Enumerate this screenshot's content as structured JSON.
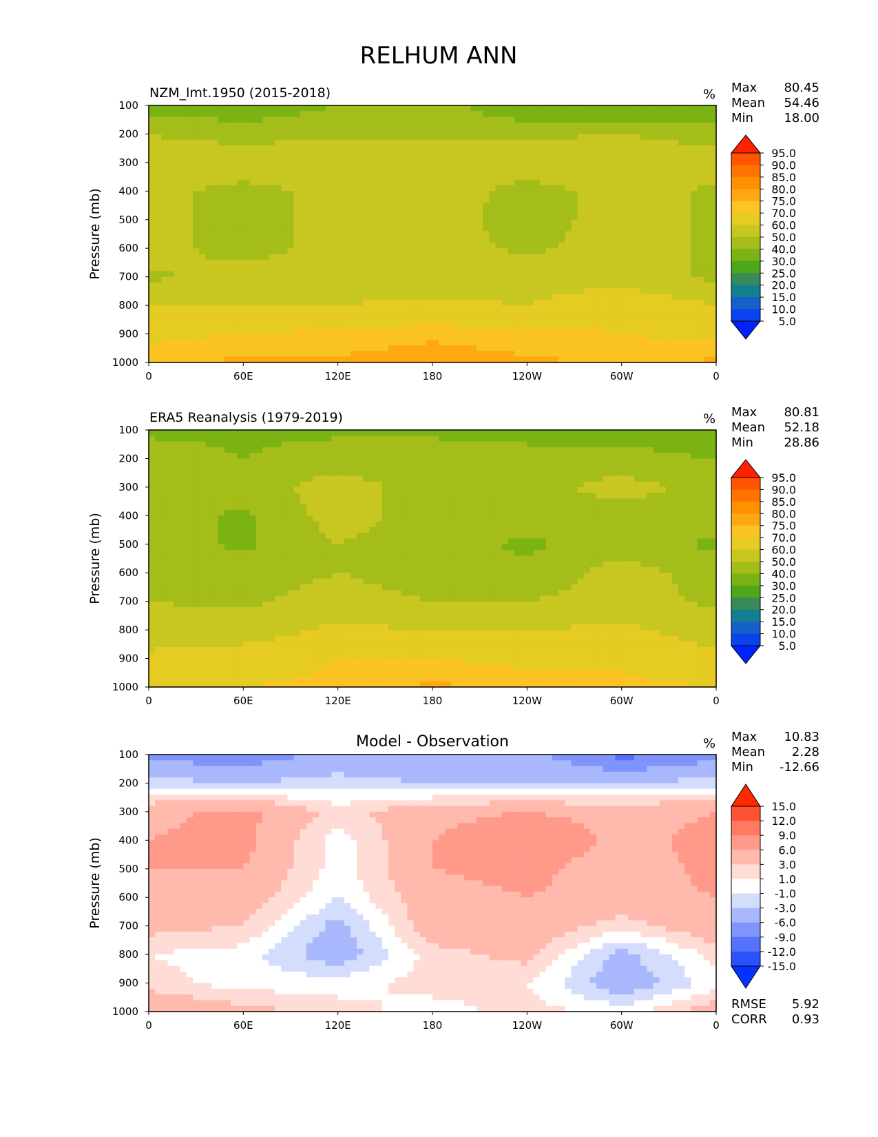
{
  "figure_title": "RELHUM ANN",
  "chart_data": [
    {
      "type": "heatmap",
      "title": "NZM_lmt.1950 (2015-2018)",
      "units": "%",
      "ylabel": "Pressure (mb)",
      "xlabel": "",
      "x_ticks": [
        "0",
        "60E",
        "120E",
        "180",
        "120W",
        "60W",
        "0"
      ],
      "y_ticks": [
        "100",
        "200",
        "300",
        "400",
        "500",
        "600",
        "700",
        "800",
        "900",
        "1000"
      ],
      "xlim": [
        0,
        360
      ],
      "ylim": [
        1000,
        100
      ],
      "stats": {
        "max_label": "Max",
        "max": "80.45",
        "mean_label": "Mean",
        "mean": "54.46",
        "min_label": "Min",
        "min": "18.00"
      },
      "colorbar": {
        "levels": [
          "95.0",
          "90.0",
          "85.0",
          "80.0",
          "75.0",
          "70.0",
          "60.0",
          "50.0",
          "40.0",
          "30.0",
          "25.0",
          "20.0",
          "15.0",
          "10.0",
          "5.0"
        ],
        "colors": [
          "#ff2200",
          "#ff5500",
          "#ff7400",
          "#ff9100",
          "#ffa813",
          "#fbc323",
          "#e6cb23",
          "#c8c621",
          "#a4bd19",
          "#7ab313",
          "#4da719",
          "#378a5a",
          "#128090",
          "#1560c9",
          "#0a43ee",
          "#0022ff"
        ]
      },
      "bands": [
        {
          "p": 100,
          "values": [
            35,
            33,
            40,
            45,
            30,
            28,
            33
          ]
        },
        {
          "p": 200,
          "values": [
            50,
            45,
            48,
            47,
            48,
            50,
            45
          ]
        },
        {
          "p": 300,
          "values": [
            55,
            60,
            58,
            58,
            58,
            60,
            55
          ]
        },
        {
          "p": 400,
          "values": [
            55,
            45,
            55,
            58,
            45,
            55,
            48
          ]
        },
        {
          "p": 500,
          "values": [
            55,
            45,
            55,
            55,
            45,
            55,
            48
          ]
        },
        {
          "p": 600,
          "values": [
            55,
            45,
            55,
            55,
            48,
            55,
            48
          ]
        },
        {
          "p": 700,
          "values": [
            48,
            55,
            55,
            55,
            55,
            55,
            48
          ]
        },
        {
          "p": 800,
          "values": [
            60,
            60,
            60,
            62,
            60,
            68,
            60
          ]
        },
        {
          "p": 900,
          "values": [
            68,
            70,
            72,
            74,
            72,
            70,
            68
          ]
        },
        {
          "p": 1000,
          "values": [
            74,
            76,
            76,
            78,
            76,
            74,
            76
          ]
        }
      ]
    },
    {
      "type": "heatmap",
      "title": "ERA5 Reanalysis (1979-2019)",
      "units": "%",
      "ylabel": "Pressure (mb)",
      "xlabel": "",
      "x_ticks": [
        "0",
        "60E",
        "120E",
        "180",
        "120W",
        "60W",
        "0"
      ],
      "y_ticks": [
        "100",
        "200",
        "300",
        "400",
        "500",
        "600",
        "700",
        "800",
        "900",
        "1000"
      ],
      "xlim": [
        0,
        360
      ],
      "ylim": [
        1000,
        100
      ],
      "stats": {
        "max_label": "Max",
        "max": "80.81",
        "mean_label": "Mean",
        "mean": "52.18",
        "min_label": "Min",
        "min": "28.86"
      },
      "colorbar": {
        "levels": [
          "95.0",
          "90.0",
          "85.0",
          "80.0",
          "75.0",
          "70.0",
          "60.0",
          "50.0",
          "40.0",
          "30.0",
          "25.0",
          "20.0",
          "15.0",
          "10.0",
          "5.0"
        ],
        "colors": [
          "#ff2200",
          "#ff5500",
          "#ff7400",
          "#ff9100",
          "#ffa813",
          "#fbc323",
          "#e6cb23",
          "#c8c621",
          "#a4bd19",
          "#7ab313",
          "#4da719",
          "#378a5a",
          "#128090",
          "#1560c9",
          "#0a43ee",
          "#0022ff"
        ]
      },
      "bands": [
        {
          "p": 100,
          "values": [
            38,
            38,
            38,
            38,
            35,
            38,
            35
          ]
        },
        {
          "p": 200,
          "values": [
            45,
            40,
            45,
            45,
            45,
            42,
            40
          ]
        },
        {
          "p": 300,
          "values": [
            45,
            45,
            55,
            45,
            45,
            55,
            45
          ]
        },
        {
          "p": 400,
          "values": [
            45,
            38,
            55,
            45,
            45,
            45,
            45
          ]
        },
        {
          "p": 500,
          "values": [
            45,
            38,
            50,
            45,
            38,
            45,
            38
          ]
        },
        {
          "p": 600,
          "values": [
            45,
            45,
            50,
            45,
            42,
            55,
            45
          ]
        },
        {
          "p": 700,
          "values": [
            50,
            48,
            55,
            50,
            50,
            55,
            48
          ]
        },
        {
          "p": 800,
          "values": [
            55,
            55,
            62,
            60,
            60,
            62,
            55
          ]
        },
        {
          "p": 900,
          "values": [
            62,
            65,
            70,
            70,
            68,
            68,
            62
          ]
        },
        {
          "p": 1000,
          "values": [
            68,
            70,
            72,
            76,
            74,
            72,
            70
          ]
        }
      ]
    },
    {
      "type": "heatmap",
      "title": "Model - Observation",
      "units": "%",
      "ylabel": "Pressure (mb)",
      "xlabel": "",
      "x_ticks": [
        "0",
        "60E",
        "120E",
        "180",
        "120W",
        "60W",
        "0"
      ],
      "y_ticks": [
        "100",
        "200",
        "300",
        "400",
        "500",
        "600",
        "700",
        "800",
        "900",
        "1000"
      ],
      "xlim": [
        0,
        360
      ],
      "ylim": [
        1000,
        100
      ],
      "stats": {
        "max_label": "Max",
        "max": "10.83",
        "mean_label": "Mean",
        "mean": "2.28",
        "min_label": "Min",
        "min": "-12.66"
      },
      "extra_stats": {
        "rmse_label": "RMSE",
        "rmse": "5.92",
        "corr_label": "CORR",
        "corr": "0.93"
      },
      "colorbar": {
        "levels": [
          "15.0",
          "12.0",
          "9.0",
          "6.0",
          "3.0",
          "1.0",
          "-1.0",
          "-3.0",
          "-6.0",
          "-9.0",
          "-12.0",
          "-15.0"
        ],
        "colors": [
          "#ff2a00",
          "#ff5233",
          "#ff7a61",
          "#ff998a",
          "#ffb9ad",
          "#ffdcd6",
          "#ffffff",
          "#d4ddfc",
          "#a9b8fc",
          "#7f94fc",
          "#5472fc",
          "#2a52fc",
          "#0033ff"
        ]
      },
      "bands": [
        {
          "p": 100,
          "values": [
            -7,
            -8,
            -5,
            -6,
            -5,
            -10,
            -7
          ]
        },
        {
          "p": 200,
          "values": [
            -2,
            -3,
            -2,
            -3,
            -3,
            -3,
            -2
          ]
        },
        {
          "p": 300,
          "values": [
            5,
            7,
            2,
            5,
            6,
            5,
            6
          ]
        },
        {
          "p": 400,
          "values": [
            6,
            7,
            0,
            6,
            9,
            5,
            7
          ]
        },
        {
          "p": 500,
          "values": [
            6,
            6,
            0,
            6,
            7,
            4,
            7
          ]
        },
        {
          "p": 600,
          "values": [
            6,
            5,
            -1,
            5,
            6,
            5,
            6
          ]
        },
        {
          "p": 700,
          "values": [
            4,
            3,
            -4,
            5,
            5,
            2,
            5
          ]
        },
        {
          "p": 800,
          "values": [
            1,
            0,
            -5,
            2,
            4,
            -4,
            2
          ]
        },
        {
          "p": 900,
          "values": [
            2,
            0,
            0,
            2,
            1,
            -5,
            0
          ]
        },
        {
          "p": 1000,
          "values": [
            6,
            4,
            2,
            0,
            2,
            0,
            5
          ]
        }
      ]
    }
  ]
}
